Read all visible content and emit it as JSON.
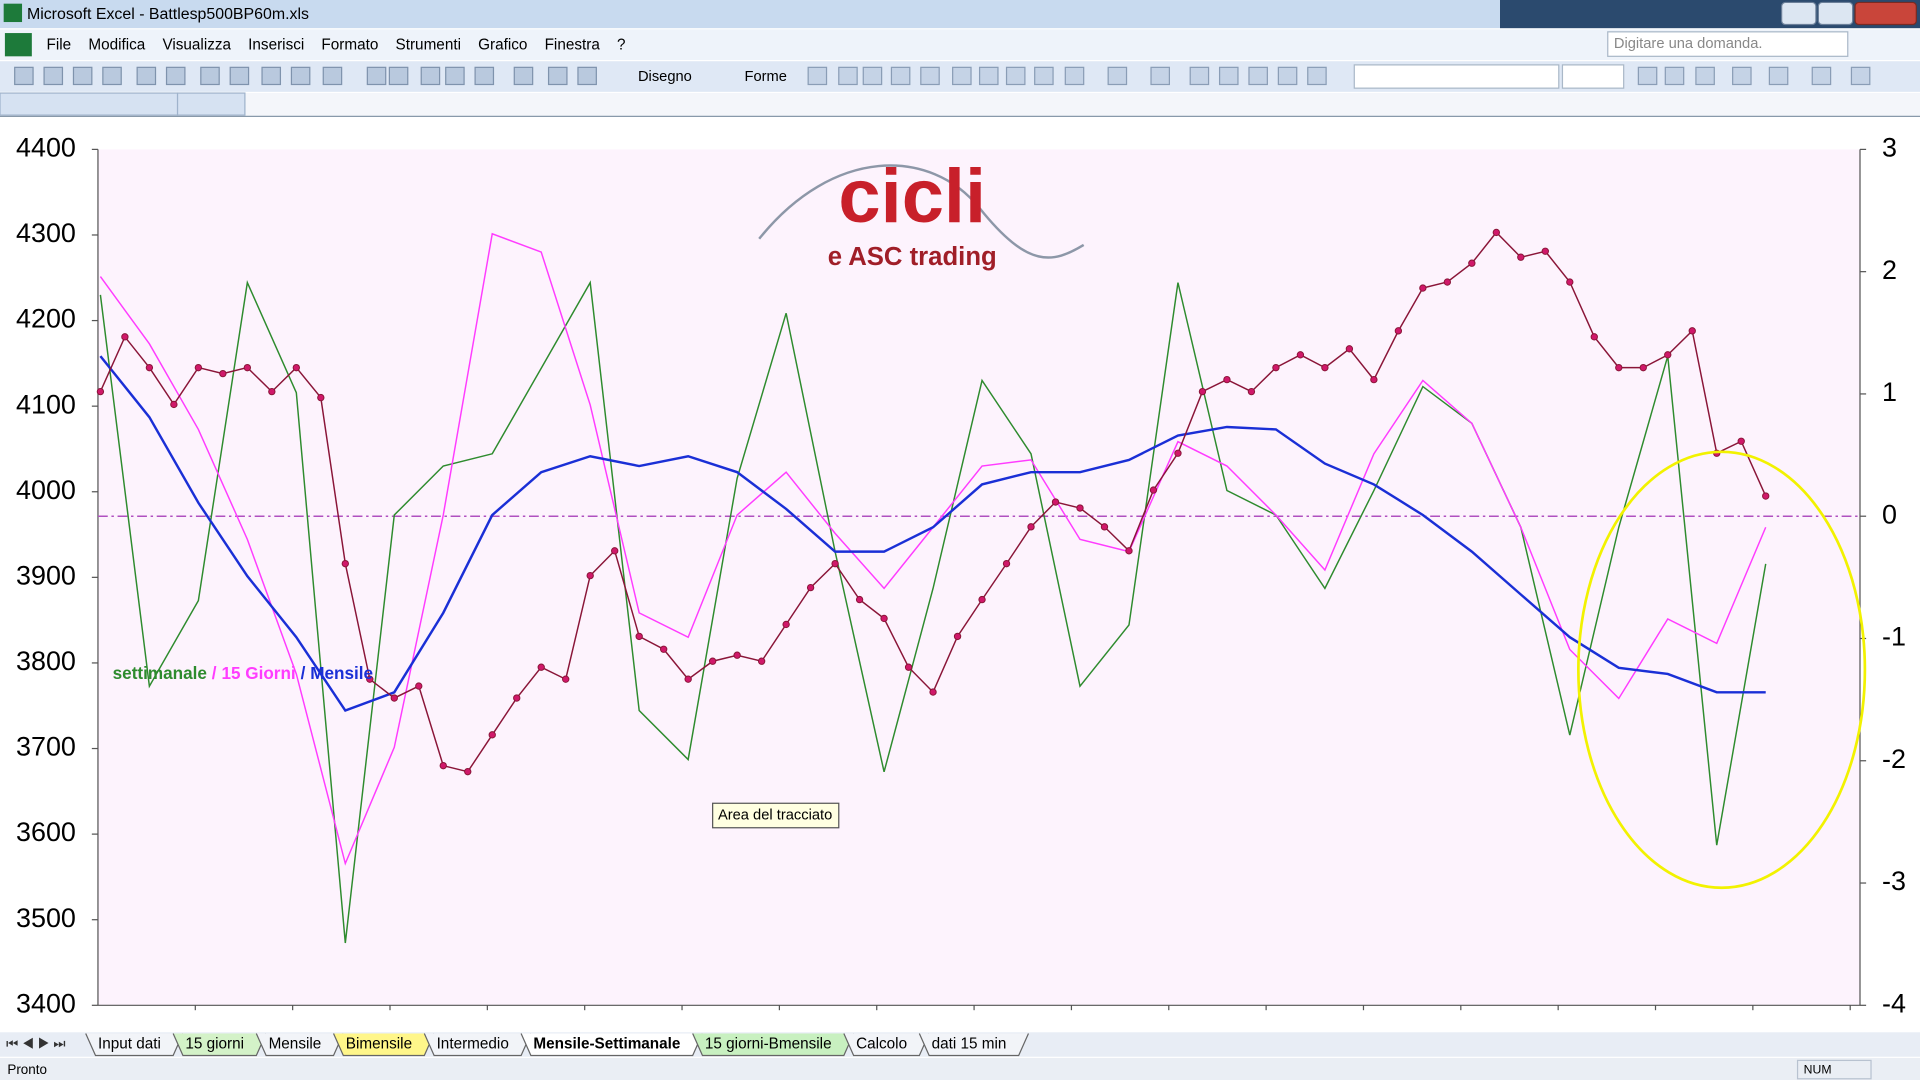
{
  "window": {
    "title": "Microsoft Excel - Battlesp500BP60m.xls",
    "help_box": "Digitare una domanda."
  },
  "menu": [
    "File",
    "Modifica",
    "Visualizza",
    "Inserisci",
    "Formato",
    "Strumenti",
    "Grafico",
    "Finestra",
    "?"
  ],
  "toolbar": {
    "draw": "Disegno",
    "shapes": "Forme"
  },
  "tabs": [
    {
      "name": "Input dati"
    },
    {
      "name": "15 giorni",
      "color": "#d4f2c8"
    },
    {
      "name": "Mensile"
    },
    {
      "name": "Bimensile",
      "color": "#fff68a"
    },
    {
      "name": "Intermedio"
    },
    {
      "name": "Mensile-Settimanale",
      "active": true
    },
    {
      "name": "15 giorni-Bmensile",
      "color": "#c8f0c0"
    },
    {
      "name": "Calcolo"
    },
    {
      "name": "dati 15 min"
    }
  ],
  "status": {
    "left": "Pronto",
    "num": "NUM"
  },
  "chart_data": {
    "type": "line",
    "logo": {
      "title": "cicli",
      "subtitle": "e ASC trading"
    },
    "tooltip": "Area del tracciato",
    "legend_separator": "/",
    "ylim": [
      3400,
      4400
    ],
    "yticks": [
      3400,
      3500,
      3600,
      3700,
      3800,
      3900,
      4000,
      4100,
      4200,
      4300,
      4400
    ],
    "y2lim": [
      -4,
      3
    ],
    "y2ticks": [
      -4,
      -3,
      -2,
      -1,
      0,
      1,
      2,
      3
    ],
    "reference_line": {
      "axis": "y2",
      "value": 0,
      "color": "#b050c0"
    },
    "series": [
      {
        "color": "#8a1538",
        "marker_color": "#d0186a",
        "markers": true,
        "values": [
          4117,
          4181,
          4145,
          4102,
          4145,
          4138,
          4145,
          4117,
          4145,
          4110,
          3916,
          3781,
          3759,
          3773,
          3680,
          3673,
          3716,
          3759,
          3795,
          3781,
          3902,
          3931,
          3831,
          3816,
          3781,
          3802,
          3809,
          3802,
          3845,
          3888,
          3916,
          3874,
          3852,
          3795,
          3766,
          3831,
          3874,
          3916,
          3959,
          3988,
          3981,
          3959,
          3931,
          4002,
          4045,
          4117,
          4131,
          4117,
          4145,
          4160,
          4145,
          4167,
          4131,
          4188,
          4238,
          4245,
          4267,
          4303,
          4274,
          4281,
          4245,
          4181,
          4145,
          4145,
          4160,
          4188,
          4045,
          4059,
          3995
        ]
      },
      {
        "name": "settimanale",
        "color": "#2e8b2e",
        "axis": "y2",
        "values": [
          1.81,
          -1.39,
          -0.69,
          1.91,
          1.01,
          -3.49,
          0.01,
          0.41,
          0.51,
          1.21,
          1.91,
          -1.59,
          -1.99,
          0.31,
          1.66,
          -0.29,
          -2.09,
          -0.59,
          1.11,
          0.51,
          -1.39,
          -0.89,
          1.91,
          0.21,
          0.01,
          -0.59,
          0.21,
          1.06,
          0.76,
          -0.09,
          -1.79,
          -0.09,
          1.31,
          -2.69,
          -0.39
        ]
      },
      {
        "name": "15 Giorni",
        "color": "#ff3cff",
        "axis": "y2",
        "values": [
          1.96,
          1.41,
          0.71,
          -0.19,
          -1.29,
          -2.84,
          -1.89,
          0.01,
          2.31,
          2.16,
          0.91,
          -0.79,
          -0.99,
          0.01,
          0.36,
          -0.14,
          -0.59,
          -0.09,
          0.41,
          0.46,
          -0.19,
          -0.29,
          0.61,
          0.41,
          0.01,
          -0.44,
          0.51,
          1.11,
          0.76,
          -0.09,
          -1.09,
          -1.49,
          -0.84,
          -1.04,
          -0.09
        ]
      },
      {
        "name": "Mensile",
        "color": "#1a2fd6",
        "axis": "y2",
        "values": [
          1.31,
          0.81,
          0.11,
          -0.49,
          -0.99,
          -1.59,
          -1.44,
          -0.79,
          0.01,
          0.36,
          0.49,
          0.41,
          0.49,
          0.36,
          0.06,
          -0.29,
          -0.29,
          -0.09,
          0.26,
          0.36,
          0.36,
          0.46,
          0.66,
          0.73,
          0.71,
          0.43,
          0.26,
          0.01,
          -0.29,
          -0.64,
          -0.99,
          -1.24,
          -1.29,
          -1.44,
          -1.44
        ]
      }
    ]
  }
}
